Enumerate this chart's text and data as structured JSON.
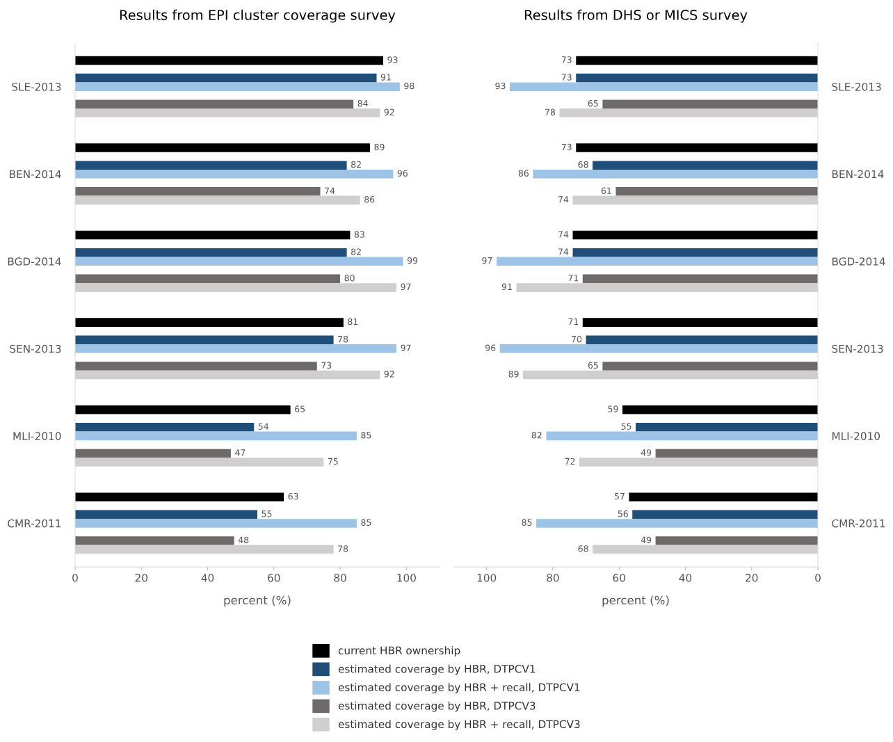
{
  "chart_data": [
    {
      "type": "bar",
      "orientation": "horizontal",
      "title": "Results from EPI cluster coverage survey",
      "xlabel": "percent (%)",
      "categories": [
        "SLE-2013",
        "BEN-2014",
        "BGD-2014",
        "SEN-2013",
        "MLI-2010",
        "CMR-2011"
      ],
      "xlim": [
        0,
        110
      ],
      "xticks": [
        0,
        20,
        40,
        60,
        80,
        100
      ],
      "data_labels": true,
      "legend": "bottom",
      "grid": false,
      "series": [
        {
          "name": "current HBR ownership",
          "color": "#000000",
          "values": [
            93,
            89,
            83,
            81,
            65,
            63
          ]
        },
        {
          "name": "estimated coverage by HBR, DTPCV1",
          "color": "#1f4e79",
          "values": [
            91,
            82,
            82,
            78,
            54,
            55
          ]
        },
        {
          "name": "estimated coverage by HBR + recall, DTPCV1",
          "color": "#9dc3e6",
          "values": [
            98,
            96,
            99,
            97,
            85,
            85
          ]
        },
        {
          "name": "estimated coverage by HBR, DTPCV3",
          "color": "#6e6a6a",
          "values": [
            84,
            74,
            80,
            73,
            47,
            48
          ]
        },
        {
          "name": "estimated coverage by HBR + recall, DTPCV3",
          "color": "#d0cece",
          "values": [
            92,
            86,
            97,
            92,
            75,
            78
          ]
        }
      ]
    },
    {
      "type": "bar",
      "orientation": "horizontal",
      "title": "Results from DHS or MICS survey",
      "xlabel": "percent (%)",
      "categories": [
        "SLE-2013",
        "BEN-2014",
        "BGD-2014",
        "SEN-2013",
        "MLI-2010",
        "CMR-2011"
      ],
      "xlim": [
        110,
        0
      ],
      "xticks": [
        100,
        80,
        60,
        40,
        20,
        0
      ],
      "data_labels": true,
      "grid": false,
      "series": [
        {
          "color": "#000000",
          "values": [
            73,
            73,
            74,
            71,
            59,
            57
          ]
        },
        {
          "color": "#1f4e79",
          "values": [
            73,
            68,
            74,
            70,
            55,
            56
          ]
        },
        {
          "color": "#9dc3e6",
          "values": [
            93,
            86,
            97,
            96,
            82,
            85
          ]
        },
        {
          "color": "#6e6a6a",
          "values": [
            65,
            61,
            71,
            65,
            49,
            49
          ]
        },
        {
          "color": "#d0cece",
          "values": [
            78,
            74,
            91,
            89,
            72,
            68
          ]
        }
      ]
    }
  ]
}
